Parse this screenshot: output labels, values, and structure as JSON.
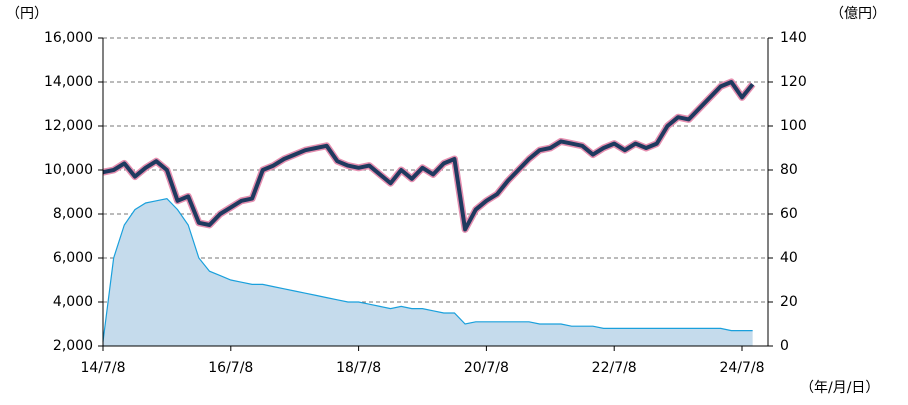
{
  "chart_data": {
    "type": "line",
    "y_label": "（円）",
    "y2_label": "（億円）",
    "x_label": "（年/月/日）",
    "categories": [
      "14/7/8",
      null,
      null,
      null,
      null,
      null,
      null,
      null,
      null,
      null,
      null,
      null,
      "16/7/8",
      null,
      null,
      null,
      null,
      null,
      null,
      null,
      null,
      null,
      null,
      null,
      "18/7/8",
      null,
      null,
      null,
      null,
      null,
      null,
      null,
      null,
      null,
      null,
      null,
      "20/7/8",
      null,
      null,
      null,
      null,
      null,
      null,
      null,
      null,
      null,
      null,
      null,
      "22/7/8",
      null,
      null,
      null,
      null,
      null,
      null,
      null,
      null,
      null,
      null,
      null,
      "24/7/8",
      null
    ],
    "series": [
      {
        "type": "area",
        "axis": "y2",
        "color": "#1aa0dc",
        "fill": "#c5dbec",
        "values": [
          2,
          40,
          55,
          62,
          65,
          66,
          67,
          62,
          55,
          40,
          34,
          32,
          30,
          29,
          28,
          28,
          27,
          26,
          25,
          24,
          23,
          22,
          21,
          20,
          20,
          19,
          18,
          17,
          18,
          17,
          17,
          16,
          15,
          15,
          10,
          11,
          11,
          11,
          11,
          11,
          11,
          10,
          10,
          10,
          9,
          9,
          9,
          8,
          8,
          8,
          8,
          8,
          8,
          8,
          8,
          8,
          8,
          8,
          8,
          7,
          7,
          7
        ]
      },
      {
        "type": "line",
        "axis": "y",
        "color": "#1f3a5f",
        "outline": "#e58fb0",
        "values": [
          9900,
          10000,
          10300,
          9700,
          10100,
          10400,
          10000,
          8600,
          8800,
          7600,
          7500,
          8000,
          8300,
          8600,
          8700,
          10000,
          10200,
          10500,
          10700,
          10900,
          11000,
          11100,
          10400,
          10200,
          10100,
          10200,
          9800,
          9400,
          10000,
          9600,
          10100,
          9800,
          10300,
          10500,
          7300,
          8200,
          8600,
          8900,
          9500,
          10000,
          10500,
          10900,
          11000,
          11300,
          11200,
          11100,
          10700,
          11000,
          11200,
          10900,
          11200,
          11000,
          11200,
          12000,
          12400,
          12300,
          12800,
          13300,
          13800,
          14000,
          13300,
          13900
        ]
      }
    ],
    "ylim": [
      2000,
      16000
    ],
    "yticks": [
      {
        "value": 2000,
        "label": "2,000"
      },
      {
        "value": 4000,
        "label": "4,000"
      },
      {
        "value": 6000,
        "label": "6,000"
      },
      {
        "value": 8000,
        "label": "8,000"
      },
      {
        "value": 10000,
        "label": "10,000"
      },
      {
        "value": 12000,
        "label": "12,000"
      },
      {
        "value": 14000,
        "label": "14,000"
      },
      {
        "value": 16000,
        "label": "16,000"
      }
    ],
    "y2lim": [
      0,
      140
    ],
    "y2ticks": [
      0,
      20,
      40,
      60,
      80,
      100,
      120,
      140
    ],
    "grid": true
  }
}
